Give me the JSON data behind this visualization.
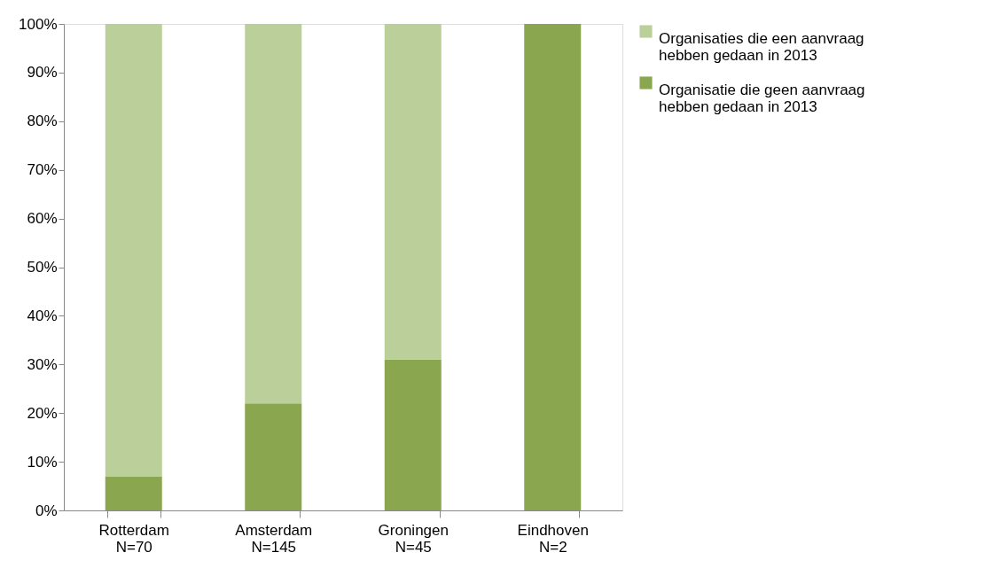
{
  "chart_data": {
    "type": "bar",
    "stacked": true,
    "categories": [
      "Rotterdam\nN=70",
      "Amsterdam\nN=145",
      "Groningen\nN=45",
      "Eindhoven\nN=2"
    ],
    "series": [
      {
        "name": "Organisatie die geen aanvraag hebben gedaan in 2013",
        "color": "#8aa64f",
        "values": [
          7,
          22,
          31,
          100
        ]
      },
      {
        "name": "Organisaties die een aanvraag hebben gedaan in 2013",
        "color": "#bacf99",
        "values": [
          93,
          78,
          69,
          0
        ]
      }
    ],
    "ylim": [
      0,
      100
    ],
    "yticks": [
      {
        "value": 0,
        "label": "0%"
      },
      {
        "value": 10,
        "label": "10%"
      },
      {
        "value": 20,
        "label": "20%"
      },
      {
        "value": 30,
        "label": "30%"
      },
      {
        "value": 40,
        "label": "40%"
      },
      {
        "value": 50,
        "label": "50%"
      },
      {
        "value": 60,
        "label": "60%"
      },
      {
        "value": 70,
        "label": "70%"
      },
      {
        "value": 80,
        "label": "80%"
      },
      {
        "value": 90,
        "label": "90%"
      },
      {
        "value": 100,
        "label": "100%"
      }
    ],
    "grid": false,
    "legend": "right"
  }
}
